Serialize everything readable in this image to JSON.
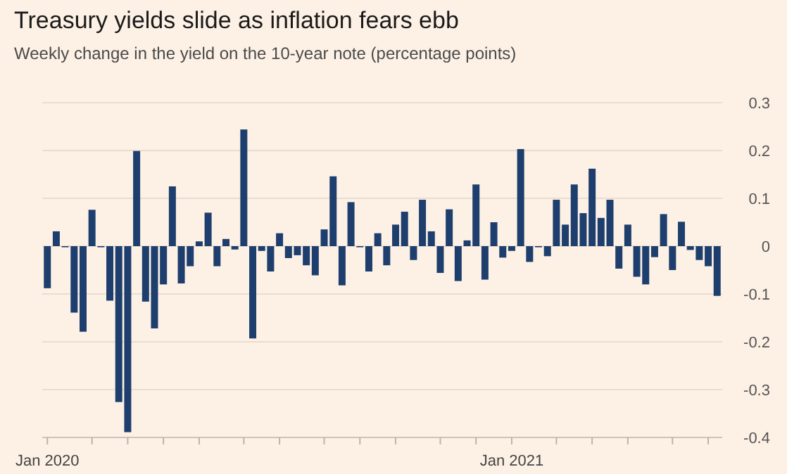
{
  "chart_data": {
    "type": "bar",
    "title": "Treasury yields slide as inflation fears ebb",
    "subtitle": "Weekly change in the yield on the 10-year note (percentage points)",
    "x": [
      "2020-01-03",
      "2020-01-10",
      "2020-01-17",
      "2020-01-24",
      "2020-01-31",
      "2020-02-07",
      "2020-02-14",
      "2020-02-21",
      "2020-02-28",
      "2020-03-06",
      "2020-03-13",
      "2020-03-20",
      "2020-03-27",
      "2020-04-03",
      "2020-04-10",
      "2020-04-17",
      "2020-04-24",
      "2020-05-01",
      "2020-05-08",
      "2020-05-15",
      "2020-05-22",
      "2020-05-29",
      "2020-06-05",
      "2020-06-12",
      "2020-06-19",
      "2020-06-26",
      "2020-07-03",
      "2020-07-10",
      "2020-07-17",
      "2020-07-24",
      "2020-07-31",
      "2020-08-07",
      "2020-08-14",
      "2020-08-21",
      "2020-08-28",
      "2020-09-04",
      "2020-09-11",
      "2020-09-18",
      "2020-09-25",
      "2020-10-02",
      "2020-10-09",
      "2020-10-16",
      "2020-10-23",
      "2020-10-30",
      "2020-11-06",
      "2020-11-13",
      "2020-11-20",
      "2020-11-27",
      "2020-12-04",
      "2020-12-11",
      "2020-12-18",
      "2020-12-25",
      "2021-01-01",
      "2021-01-08",
      "2021-01-15",
      "2021-01-22",
      "2021-01-29",
      "2021-02-05",
      "2021-02-12",
      "2021-02-19",
      "2021-02-26",
      "2021-03-05",
      "2021-03-12",
      "2021-03-19",
      "2021-03-26",
      "2021-04-02",
      "2021-04-09",
      "2021-04-16",
      "2021-04-23",
      "2021-04-30",
      "2021-05-07",
      "2021-05-14",
      "2021-05-21",
      "2021-05-28",
      "2021-06-04",
      "2021-06-11"
    ],
    "values": [
      -0.088,
      0.031,
      0,
      -0.139,
      -0.179,
      0.076,
      0,
      -0.114,
      -0.326,
      -0.389,
      0.199,
      -0.116,
      -0.172,
      -0.08,
      0.125,
      -0.078,
      -0.042,
      0.01,
      0.07,
      -0.042,
      0.015,
      -0.007,
      0.244,
      -0.193,
      -0.01,
      -0.053,
      0.027,
      -0.025,
      -0.019,
      -0.04,
      -0.061,
      0.035,
      0.146,
      -0.082,
      0.092,
      0,
      -0.053,
      0.027,
      -0.04,
      0.045,
      0.072,
      -0.029,
      0.097,
      0.031,
      -0.056,
      0.077,
      -0.073,
      0.012,
      0.129,
      -0.07,
      0.05,
      -0.024,
      -0.01,
      0.203,
      -0.033,
      0,
      -0.021,
      0.097,
      0.045,
      0.129,
      0.069,
      0.162,
      0.059,
      0.097,
      -0.047,
      0.045,
      -0.064,
      -0.08,
      -0.023,
      0.067,
      -0.05,
      0.051,
      -0.008,
      -0.029,
      -0.042,
      -0.104
    ],
    "color": "#1e3f6e",
    "ylim": [
      -0.4,
      0.3
    ],
    "yticks": [
      -0.4,
      -0.3,
      -0.2,
      -0.1,
      0,
      0.1,
      0.2,
      0.3
    ],
    "xlim": [
      "2019-12-30",
      "2021-06-15"
    ],
    "xticks": [
      {
        "value": "2020-01-03",
        "label": "Jan 2020"
      },
      {
        "value": "2020-02-07",
        "label": null
      },
      {
        "value": "2020-03-06",
        "label": null
      },
      {
        "value": "2020-04-03",
        "label": null
      },
      {
        "value": "2020-05-01",
        "label": null
      },
      {
        "value": "2020-06-05",
        "label": null
      },
      {
        "value": "2020-07-03",
        "label": null
      },
      {
        "value": "2020-08-07",
        "label": null
      },
      {
        "value": "2020-09-04",
        "label": null
      },
      {
        "value": "2020-10-02",
        "label": null
      },
      {
        "value": "2020-11-06",
        "label": null
      },
      {
        "value": "2020-12-04",
        "label": null
      },
      {
        "value": "2021-01-01",
        "label": "Jan 2021"
      },
      {
        "value": "2021-02-05",
        "label": null
      },
      {
        "value": "2021-03-05",
        "label": null
      },
      {
        "value": "2021-04-02",
        "label": null
      },
      {
        "value": "2021-05-07",
        "label": null
      },
      {
        "value": "2021-06-04",
        "label": null
      }
    ],
    "grid": "y"
  }
}
